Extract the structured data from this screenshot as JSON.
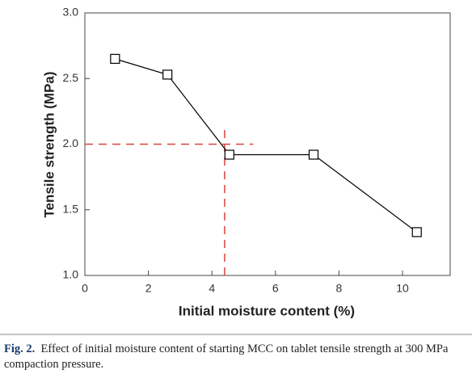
{
  "chart_data": {
    "type": "line",
    "x_label": "Initial moisture content (%)",
    "y_label": "Tensile strength (MPa)",
    "x": [
      0.95,
      2.6,
      4.55,
      7.2,
      10.45
    ],
    "series": [
      {
        "color": "#000000",
        "values": [
          2.65,
          2.53,
          1.92,
          1.92,
          1.33
        ]
      }
    ],
    "xlim": [
      0,
      11.5
    ],
    "xticks": [
      0,
      2,
      4,
      6,
      8,
      10
    ],
    "ylim": [
      1.0,
      3.0
    ],
    "yticks": [
      {
        "value": 1,
        "label": "1.0"
      },
      1.5,
      {
        "value": 2,
        "label": "2.0"
      },
      2.5,
      {
        "value": 3,
        "label": "3.0"
      }
    ],
    "reference_lines": [
      {
        "color": "#d9443f",
        "x": [
          0,
          5.3
        ],
        "y": [
          2.0,
          2.0
        ]
      },
      {
        "color": "#d9443f",
        "x": [
          4.4,
          4.4
        ],
        "y": [
          1.0,
          2.15
        ]
      }
    ]
  },
  "caption": {
    "label": "Fig. 2.",
    "text": "Effect of initial moisture content of starting MCC on tablet tensile strength at 300 MPa compaction pressure."
  }
}
